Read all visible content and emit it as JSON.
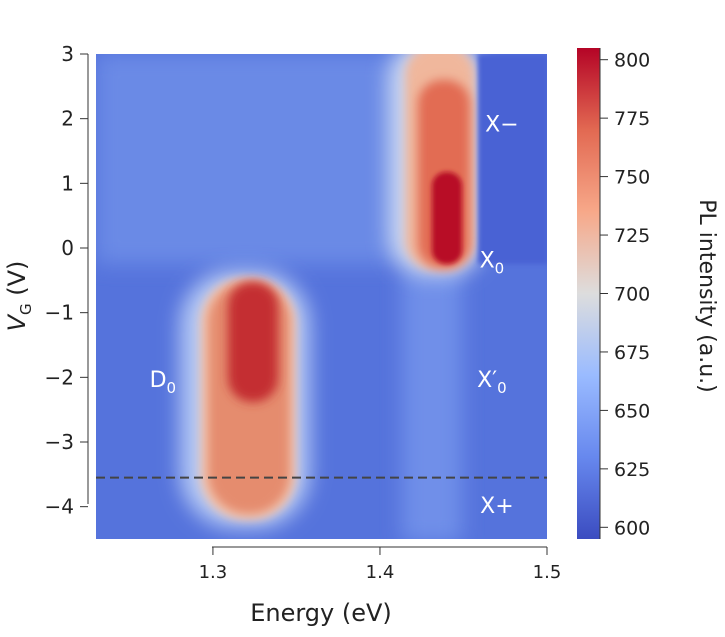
{
  "chart_data": {
    "type": "heatmap",
    "title": "",
    "xlabel": "Energy (eV)",
    "ylabel_main": "V",
    "ylabel_sub": "G",
    "ylabel_unit": " (V)",
    "xlim": [
      1.23,
      1.5
    ],
    "ylim": [
      -4.5,
      3
    ],
    "x_ticks": [
      1.3,
      1.4,
      1.5
    ],
    "x_tick_labels": [
      "1.3",
      "1.4",
      "1.5"
    ],
    "y_ticks": [
      3,
      2,
      1,
      0,
      -1,
      -2,
      -3,
      -4
    ],
    "y_tick_labels": [
      "3",
      "2",
      "1",
      "0",
      "−1",
      "−2",
      "−3",
      "−4"
    ],
    "colorbar": {
      "label": "PL intensity (a.u.)",
      "range": [
        595,
        805
      ],
      "ticks": [
        800,
        775,
        750,
        725,
        700,
        675,
        650,
        625,
        600
      ],
      "tick_labels": [
        "800",
        "775",
        "750",
        "725",
        "700",
        "675",
        "650",
        "625",
        "600"
      ],
      "colors": [
        "#3b4cc0",
        "#6788ee",
        "#9abbff",
        "#dddddd",
        "#f7a889",
        "#e26952",
        "#b40426"
      ]
    },
    "dashed_line": {
      "y": -3.55,
      "color": "#444444"
    },
    "annotations": [
      {
        "id": "xminus",
        "text": "X−",
        "sub": "",
        "x": 1.473,
        "y": 1.8
      },
      {
        "id": "x0",
        "text": "X",
        "sub": "0",
        "x": 1.467,
        "y": -0.3
      },
      {
        "id": "d0",
        "text": "D",
        "sub": "0",
        "x": 1.27,
        "y": -2.15
      },
      {
        "id": "x0prime",
        "text": "X′",
        "sub": "0",
        "x": 1.467,
        "y": -2.15
      },
      {
        "id": "xplus",
        "text": "X+",
        "sub": "",
        "x": 1.47,
        "y": -4.1
      }
    ],
    "features": [
      {
        "label": "D0",
        "x_range": [
          1.3,
          1.345
        ],
        "y_range": [
          -4.2,
          -0.5
        ],
        "peak_intensity": 795
      },
      {
        "label": "X−",
        "x_range": [
          1.425,
          1.46
        ],
        "y_range": [
          -0.3,
          2.5
        ],
        "peak_intensity": 800
      },
      {
        "label": "X0",
        "x": 1.445,
        "y": -0.2,
        "peak_intensity": 790
      }
    ]
  }
}
